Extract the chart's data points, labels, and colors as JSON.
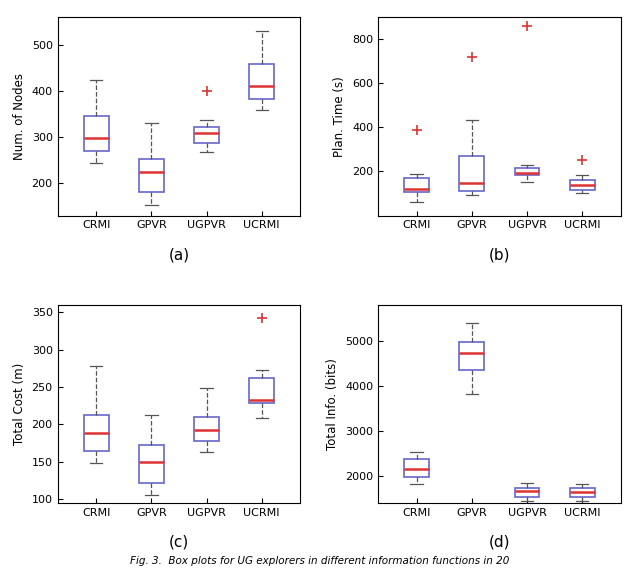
{
  "categories": [
    "CRMI",
    "GPVR",
    "UGPVR",
    "UCRMI"
  ],
  "subplot_labels": [
    "(a)",
    "(b)",
    "(c)",
    "(d)"
  ],
  "ylabels": [
    "Num. of Nodes",
    "Plan. Time (s)",
    "Total Cost (m)",
    "Total Info. (bits)"
  ],
  "box_color": "#6666cc",
  "median_color": "#dd3333",
  "whisker_color": "#555555",
  "flier_color": "#dd3333",
  "cap_color": "#555555",
  "plots": [
    {
      "ylim": [
        130,
        560
      ],
      "yticks": [
        200,
        300,
        400,
        500
      ],
      "boxes": [
        {
          "q1": 270,
          "median": 298,
          "q3": 345,
          "whislo": 245,
          "whishi": 425,
          "fliers": []
        },
        {
          "q1": 182,
          "median": 225,
          "q3": 252,
          "whislo": 152,
          "whishi": 330,
          "fliers": []
        },
        {
          "q1": 287,
          "median": 308,
          "q3": 322,
          "whislo": 268,
          "whishi": 338,
          "fliers": [
            400
          ]
        },
        {
          "q1": 382,
          "median": 410,
          "q3": 458,
          "whislo": 358,
          "whishi": 530,
          "fliers": []
        }
      ]
    },
    {
      "ylim": [
        0,
        900
      ],
      "yticks": [
        200,
        400,
        600,
        800
      ],
      "boxes": [
        {
          "q1": 108,
          "median": 120,
          "q3": 172,
          "whislo": 62,
          "whishi": 190,
          "fliers": [
            388
          ]
        },
        {
          "q1": 112,
          "median": 148,
          "q3": 270,
          "whislo": 92,
          "whishi": 435,
          "fliers": [
            718
          ]
        },
        {
          "q1": 182,
          "median": 195,
          "q3": 215,
          "whislo": 152,
          "whishi": 230,
          "fliers": [
            862
          ]
        },
        {
          "q1": 118,
          "median": 138,
          "q3": 162,
          "whislo": 102,
          "whishi": 182,
          "fliers": [
            252
          ]
        }
      ]
    },
    {
      "ylim": [
        95,
        360
      ],
      "yticks": [
        100,
        150,
        200,
        250,
        300,
        350
      ],
      "boxes": [
        {
          "q1": 165,
          "median": 188,
          "q3": 212,
          "whislo": 148,
          "whishi": 278,
          "fliers": []
        },
        {
          "q1": 122,
          "median": 150,
          "q3": 172,
          "whislo": 105,
          "whishi": 212,
          "fliers": []
        },
        {
          "q1": 178,
          "median": 192,
          "q3": 210,
          "whislo": 163,
          "whishi": 248,
          "fliers": []
        },
        {
          "q1": 228,
          "median": 232,
          "q3": 262,
          "whislo": 208,
          "whishi": 272,
          "fliers": [
            342
          ]
        }
      ]
    },
    {
      "ylim": [
        1400,
        5800
      ],
      "yticks": [
        2000,
        3000,
        4000,
        5000
      ],
      "boxes": [
        {
          "q1": 1970,
          "median": 2150,
          "q3": 2380,
          "whislo": 1820,
          "whishi": 2520,
          "fliers": []
        },
        {
          "q1": 4350,
          "median": 4720,
          "q3": 4980,
          "whislo": 3820,
          "whishi": 5400,
          "fliers": []
        },
        {
          "q1": 1540,
          "median": 1660,
          "q3": 1740,
          "whislo": 1450,
          "whishi": 1830,
          "fliers": []
        },
        {
          "q1": 1520,
          "median": 1640,
          "q3": 1730,
          "whislo": 1440,
          "whishi": 1820,
          "fliers": []
        }
      ]
    }
  ],
  "caption": "Fig. 3.  Box plots for UG explorers in different information functions in 20",
  "figsize": [
    6.4,
    5.78
  ],
  "dpi": 100
}
